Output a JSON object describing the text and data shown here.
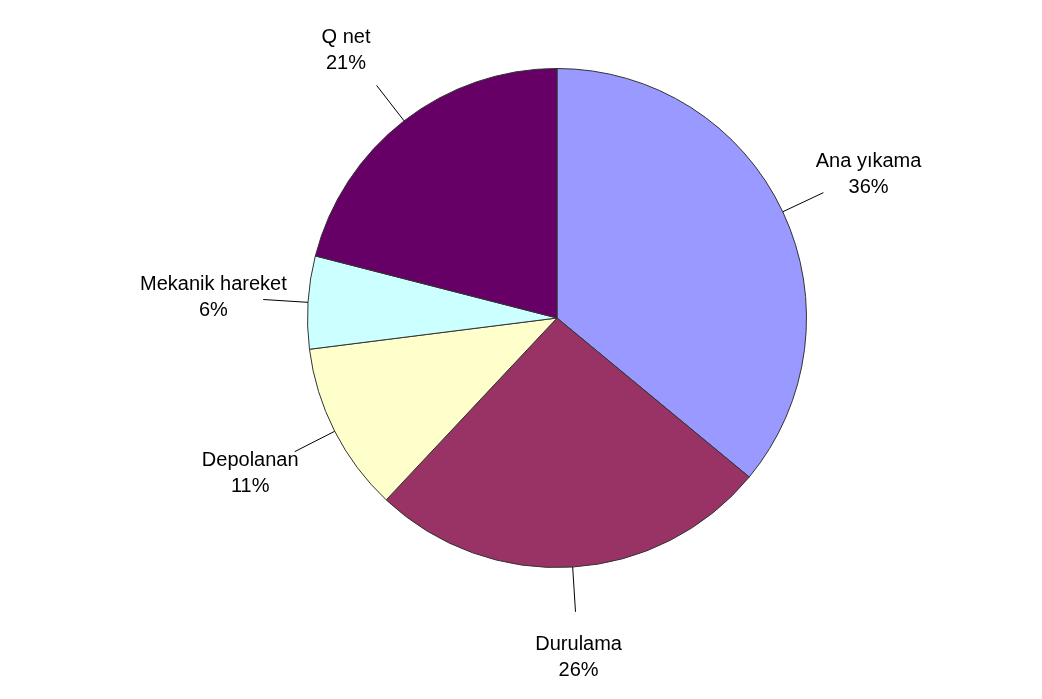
{
  "chart_data": {
    "type": "pie",
    "categories": [
      "Ana yıkama",
      "Durulama",
      "Depolanan",
      "Mekanik hareket",
      "Q net"
    ],
    "values": [
      36,
      26,
      11,
      6,
      21
    ],
    "value_labels": [
      "36%",
      "26%",
      "11%",
      "6%",
      "21%"
    ],
    "colors": [
      "#9999ff",
      "#993366",
      "#ffffcc",
      "#ccffff",
      "#660066"
    ],
    "legend": false
  }
}
